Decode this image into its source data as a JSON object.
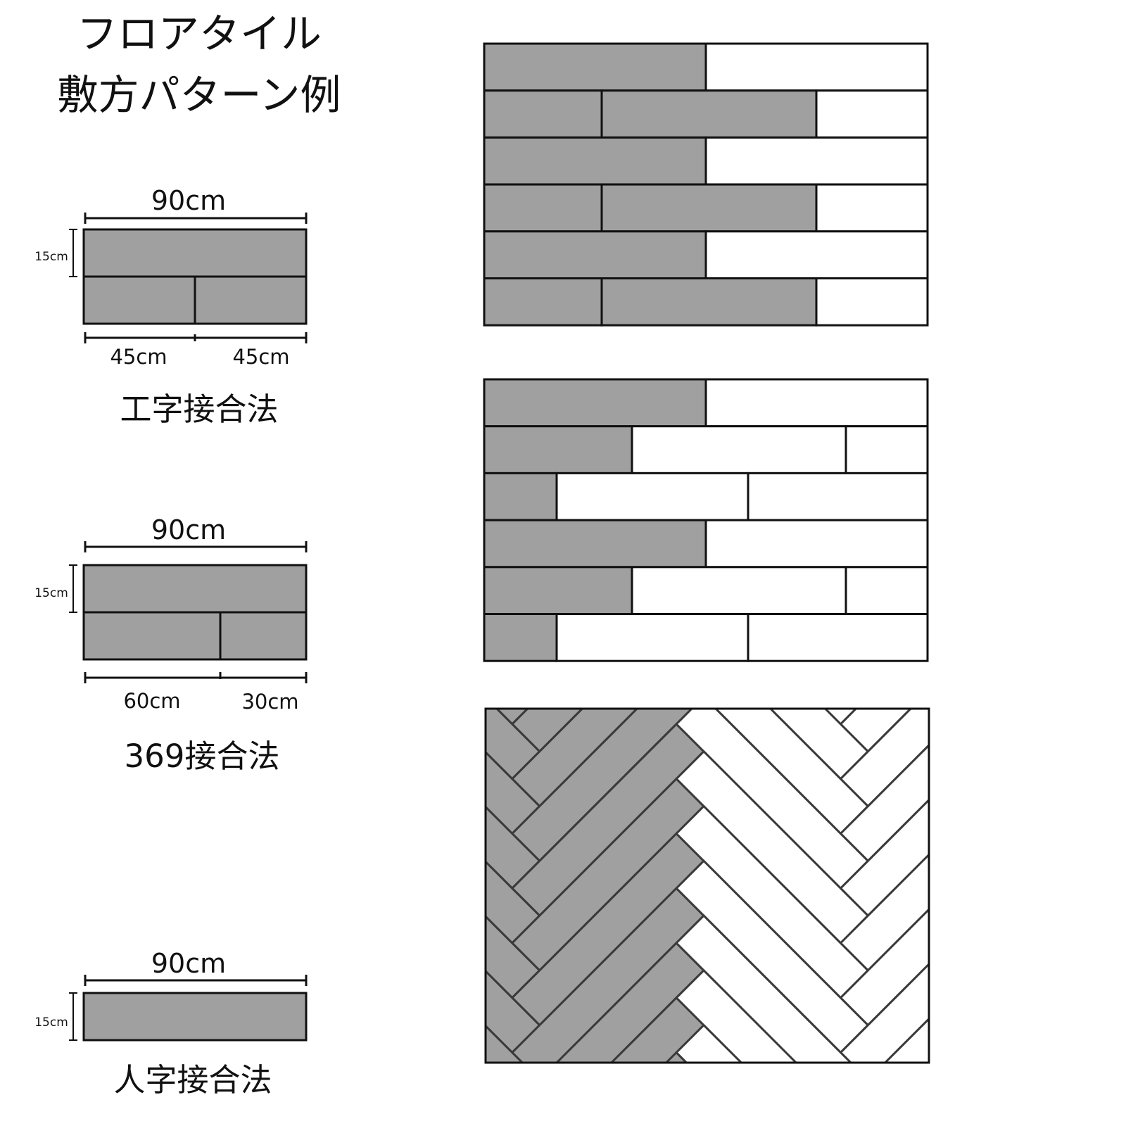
{
  "title": {
    "line1": "フロアタイル",
    "line2": "敷方パターン例"
  },
  "colors": {
    "tile_gray": "#a0a0a0",
    "tile_white": "#ffffff",
    "line": "#111111",
    "herringbone_line": "#3a3a3a"
  },
  "patterns": [
    {
      "width_label": "90cm",
      "height_label": "15cm",
      "segments": [
        "45cm",
        "45cm"
      ],
      "name": "工字接合法"
    },
    {
      "width_label": "90cm",
      "height_label": "15cm",
      "segments": [
        "60cm",
        "30cm"
      ],
      "name": "369接合法"
    },
    {
      "width_label": "90cm",
      "height_label": "15cm",
      "name": "人字接合法"
    }
  ]
}
